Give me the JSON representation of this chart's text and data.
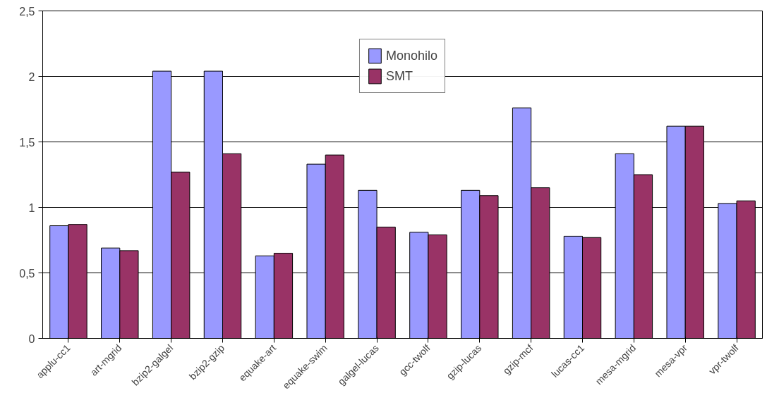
{
  "chart_data": {
    "type": "bar",
    "categories": [
      "applu-cc1",
      "art-mgrid",
      "bzip2-galgel",
      "bzip2-gzip",
      "equake-art",
      "equake-swim",
      "galgel-lucas",
      "gcc-twolf",
      "gzip-lucas",
      "gzip-mcf",
      "lucas-cc1",
      "mesa-mgrid",
      "mesa-vpr",
      "vpr-twolf"
    ],
    "series": [
      {
        "name": "Monohilo",
        "color": "#9999ff",
        "values": [
          0.86,
          0.69,
          2.04,
          2.04,
          0.63,
          1.33,
          1.13,
          0.81,
          1.13,
          1.76,
          0.78,
          1.41,
          1.62,
          1.03
        ]
      },
      {
        "name": "SMT",
        "color": "#993366",
        "values": [
          0.87,
          0.67,
          1.27,
          1.41,
          0.65,
          1.4,
          0.85,
          0.79,
          1.09,
          1.15,
          0.77,
          1.25,
          1.62,
          1.05
        ]
      }
    ],
    "ylim": [
      0,
      2.5
    ],
    "yticks": [
      0,
      {
        "value": 0.5,
        "label": "0,5"
      },
      1,
      {
        "value": 1.5,
        "label": "1,5"
      },
      2,
      {
        "value": 2.5,
        "label": "2,5"
      }
    ],
    "grid": "y",
    "legend": "top"
  }
}
